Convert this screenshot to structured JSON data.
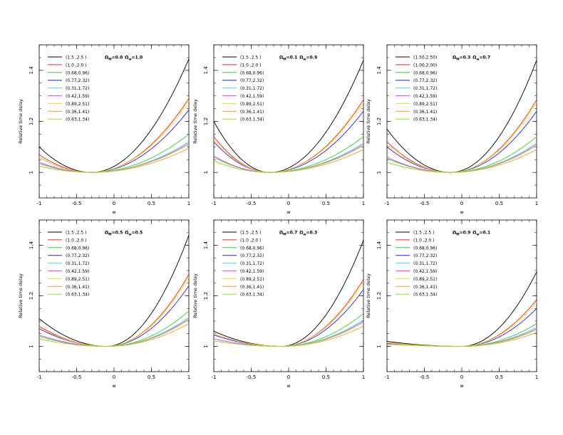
{
  "chart_data": [
    {
      "type": "line",
      "xlabel": "w",
      "ylabel": "Relative time delay",
      "xlim": [
        -1,
        1
      ],
      "ylim": [
        0.9,
        1.5
      ],
      "xticks": [
        "-1",
        "-0.5",
        "0",
        "0.5",
        "1"
      ],
      "yticks": [
        "1",
        "1.2",
        "1.4"
      ],
      "annotation": {
        "om_val": "=0.0",
        "ow_val": "=1.0"
      },
      "x_min": -0.3,
      "series": [
        {
          "name": "(1.5  ,2.5  )",
          "color": "#000000",
          "left": 1.1,
          "right": 1.445
        },
        {
          "name": "(1.0  ,2.0  )",
          "color": "#ff2020",
          "left": 1.07,
          "right": 1.29
        },
        {
          "name": "(0.68,0.96)",
          "color": "#30d030",
          "left": 1.035,
          "right": 1.15
        },
        {
          "name": "(0.77,2.32)",
          "color": "#2020ff",
          "left": 1.06,
          "right": 1.245
        },
        {
          "name": "(0.31,1.72)",
          "color": "#40e0e0",
          "left": 1.04,
          "right": 1.12
        },
        {
          "name": "(0.42,1.59)",
          "color": "#ff40ff",
          "left": 1.04,
          "right": 1.115
        },
        {
          "name": "(0.89,2.51)",
          "color": "#f0e020",
          "left": 1.06,
          "right": 1.28
        },
        {
          "name": "(0.36,1.41)",
          "color": "#ff9030",
          "left": 1.025,
          "right": 1.095
        },
        {
          "name": "(0.63,1.34)",
          "color": "#90e020",
          "left": 1.025,
          "right": 1.11
        }
      ]
    },
    {
      "type": "line",
      "xlabel": "w",
      "ylabel": "Relative time delay",
      "xlim": [
        -1,
        1
      ],
      "ylim": [
        0.9,
        1.5
      ],
      "xticks": [
        "-1",
        "-0.5",
        "0",
        "0.5",
        "1"
      ],
      "yticks": [
        "1",
        "1.2",
        "1.4"
      ],
      "annotation": {
        "om_val": "=0.1",
        "ow_val": "=0.9"
      },
      "x_min": -0.25,
      "series": [
        {
          "name": "(1.5  ,2.5  )",
          "color": "#000000",
          "left": 1.2,
          "right": 1.44
        },
        {
          "name": "(1.0  ,2.0  )",
          "color": "#ff2020",
          "left": 1.14,
          "right": 1.285
        },
        {
          "name": "(0.68,0.96)",
          "color": "#30d030",
          "left": 1.06,
          "right": 1.14
        },
        {
          "name": "(0.77,2.32)",
          "color": "#2020ff",
          "left": 1.12,
          "right": 1.24
        },
        {
          "name": "(0.31,1.72)",
          "color": "#40e0e0",
          "left": 1.065,
          "right": 1.115
        },
        {
          "name": "(0.42,1.59)",
          "color": "#ff40ff",
          "left": 1.065,
          "right": 1.11
        },
        {
          "name": "(0.89,2.51)",
          "color": "#f0e020",
          "left": 1.13,
          "right": 1.275
        },
        {
          "name": "(0.36,1.41)",
          "color": "#ff9030",
          "left": 1.045,
          "right": 1.09
        },
        {
          "name": "(0.63,1.34)",
          "color": "#90e020",
          "left": 1.045,
          "right": 1.105
        }
      ]
    },
    {
      "type": "line",
      "xlabel": "w",
      "ylabel": "Relative time delay",
      "xlim": [
        -1,
        1
      ],
      "ylim": [
        0.9,
        1.5
      ],
      "xticks": [
        "-1",
        "-0.5",
        "0",
        "0.5",
        "1"
      ],
      "yticks": [
        "1",
        "1.2",
        "1.4"
      ],
      "annotation": {
        "om_val": "=0.3",
        "ow_val": "=0.7"
      },
      "x_min": -0.15,
      "series": [
        {
          "name": "(1.50,2.50)",
          "color": "#000000",
          "left": 1.17,
          "right": 1.44
        },
        {
          "name": "(1.00,2.00)",
          "color": "#ff2020",
          "left": 1.12,
          "right": 1.285
        },
        {
          "name": "(0.68,0.96)",
          "color": "#30d030",
          "left": 1.055,
          "right": 1.14
        },
        {
          "name": "(0.77,2.32)",
          "color": "#2020ff",
          "left": 1.1,
          "right": 1.24
        },
        {
          "name": "(0.31,1.72)",
          "color": "#40e0e0",
          "left": 1.06,
          "right": 1.115
        },
        {
          "name": "(0.42,1.59)",
          "color": "#ff40ff",
          "left": 1.06,
          "right": 1.11
        },
        {
          "name": "(0.89,2.51)",
          "color": "#f0e020",
          "left": 1.11,
          "right": 1.275
        },
        {
          "name": "(0.36,1.41)",
          "color": "#ff9030",
          "left": 1.04,
          "right": 1.09
        },
        {
          "name": "(0.63,1.34)",
          "color": "#90e020",
          "left": 1.04,
          "right": 1.105
        }
      ]
    },
    {
      "type": "line",
      "xlabel": "w",
      "ylabel": "Relative time delay",
      "xlim": [
        -1,
        1
      ],
      "ylim": [
        0.9,
        1.5
      ],
      "xticks": [
        "-1",
        "-0.5",
        "0",
        "0.5",
        "1"
      ],
      "yticks": [
        "1",
        "1.2",
        "1.4"
      ],
      "annotation": {
        "om_val": "=0.5",
        "ow_val": "=0.5"
      },
      "x_min": -0.1,
      "series": [
        {
          "name": "(1.5  ,2.5  )",
          "color": "#000000",
          "left": 1.11,
          "right": 1.44
        },
        {
          "name": "(1.0  ,2.0  )",
          "color": "#ff2020",
          "left": 1.08,
          "right": 1.285
        },
        {
          "name": "(0.68,0.96)",
          "color": "#30d030",
          "left": 1.04,
          "right": 1.14
        },
        {
          "name": "(0.77,2.32)",
          "color": "#2020ff",
          "left": 1.07,
          "right": 1.24
        },
        {
          "name": "(0.31,1.72)",
          "color": "#40e0e0",
          "left": 1.045,
          "right": 1.115
        },
        {
          "name": "(0.42,1.59)",
          "color": "#ff40ff",
          "left": 1.045,
          "right": 1.11
        },
        {
          "name": "(0.89,2.51)",
          "color": "#f0e020",
          "left": 1.075,
          "right": 1.275
        },
        {
          "name": "(0.36,1.41)",
          "color": "#ff9030",
          "left": 1.03,
          "right": 1.09
        },
        {
          "name": "(0.63,1.34)",
          "color": "#90e020",
          "left": 1.03,
          "right": 1.105
        }
      ]
    },
    {
      "type": "line",
      "xlabel": "w",
      "ylabel": "Relative time delay",
      "xlim": [
        -1,
        1
      ],
      "ylim": [
        0.9,
        1.5
      ],
      "xticks": [
        "-1",
        "-0.5",
        "0",
        "0.5",
        "1"
      ],
      "yticks": [
        "1",
        "1.2",
        "1.4"
      ],
      "annotation": {
        "om_val": "=0.7",
        "ow_val": "=0.3"
      },
      "x_min": -0.1,
      "series": [
        {
          "name": "(1.5  ,2.5  )",
          "color": "#000000",
          "left": 1.06,
          "right": 1.42
        },
        {
          "name": "(1.0  ,2.0  )",
          "color": "#ff2020",
          "left": 1.05,
          "right": 1.265
        },
        {
          "name": "(0.68,0.96)",
          "color": "#30d030",
          "left": 1.03,
          "right": 1.13
        },
        {
          "name": "(0.77,2.32)",
          "color": "#2020ff",
          "left": 1.045,
          "right": 1.225
        },
        {
          "name": "(0.31,1.72)",
          "color": "#40e0e0",
          "left": 1.03,
          "right": 1.105
        },
        {
          "name": "(0.42,1.59)",
          "color": "#ff40ff",
          "left": 1.03,
          "right": 1.1
        },
        {
          "name": "(0.89,2.51)",
          "color": "#f0e020",
          "left": 1.05,
          "right": 1.255
        },
        {
          "name": "(0.36,1.41)",
          "color": "#ff9030",
          "left": 1.022,
          "right": 1.08
        },
        {
          "name": "(0.63,1.34)",
          "color": "#90e020",
          "left": 1.022,
          "right": 1.095
        }
      ]
    },
    {
      "type": "line",
      "xlabel": "w",
      "ylabel": "Relative time delay",
      "xlim": [
        -1,
        1
      ],
      "ylim": [
        0.9,
        1.5
      ],
      "xticks": [
        "-1",
        "-0.5",
        "0",
        "0.5",
        "1"
      ],
      "yticks": [
        "1",
        "1.2",
        "1.4"
      ],
      "annotation": {
        "om_val": "=0.9",
        "ow_val": "=0.1"
      },
      "x_min": 0.0,
      "series": [
        {
          "name": "(1.5  ,2.5  )",
          "color": "#000000",
          "left": 1.02,
          "right": 1.295
        },
        {
          "name": "(1.0  ,2.0  )",
          "color": "#ff2020",
          "left": 1.015,
          "right": 1.185
        },
        {
          "name": "(0.68,0.96)",
          "color": "#30d030",
          "left": 1.01,
          "right": 1.09
        },
        {
          "name": "(0.77,2.32)",
          "color": "#2020ff",
          "left": 1.012,
          "right": 1.15
        },
        {
          "name": "(0.31,1.72)",
          "color": "#40e0e0",
          "left": 1.01,
          "right": 1.075
        },
        {
          "name": "(0.42,1.59)",
          "color": "#ff40ff",
          "left": 1.01,
          "right": 1.07
        },
        {
          "name": "(0.89,2.51)",
          "color": "#f0e020",
          "left": 1.014,
          "right": 1.175
        },
        {
          "name": "(0.36,1.41)",
          "color": "#ff9030",
          "left": 1.008,
          "right": 1.055
        },
        {
          "name": "(0.63,1.34)",
          "color": "#90e020",
          "left": 1.008,
          "right": 1.065
        }
      ]
    }
  ]
}
